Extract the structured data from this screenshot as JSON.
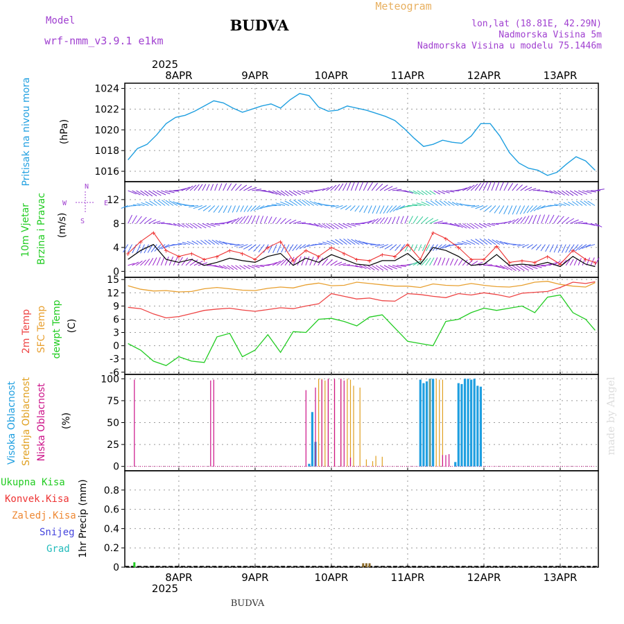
{
  "header": {
    "title": "BUDVA",
    "subtitle": "Meteogram",
    "model_label": "Model",
    "model_name": "wrf-nmm_v3.9.1 e1km",
    "lonlat": "lon,lat (18.81E, 42.29N)",
    "altitude": "Nadmorska Visina 5m",
    "model_altitude": "Nadmorska Visina u modelu 75.1446m",
    "year_top": "2025",
    "year_bottom": "2025",
    "footer_title": "BUDVA",
    "watermark": "made by Angel"
  },
  "colors": {
    "pressure": "#1f9fe0",
    "wind_label": "#22cc22",
    "wind_speed_line": "#000000",
    "gust": "#ee3333",
    "temp2m": "#ee4444",
    "sfc_temp": "#e8a030",
    "dewpt": "#22cc22",
    "high_cloud": "#1f9fe0",
    "mid_cloud": "#e0a020",
    "low_cloud": "#cc1188",
    "total_rain": "#22cc22",
    "conv_rain": "#ee3333",
    "frz_rain": "#ee8833",
    "snow": "#4444dd",
    "hail": "#22bbbb",
    "purple_text": "#a040d0",
    "wind_levels": [
      "#1f9fe0",
      "#4444ee",
      "#8822cc",
      "#22bbbb"
    ]
  },
  "chart_data": {
    "type": "line",
    "x_ticks": [
      "8APR",
      "9APR",
      "10APR",
      "11APR",
      "12APR",
      "13APR"
    ],
    "panels": [
      {
        "id": "pressure",
        "ylabels": [
          "Pritisak na nivou mora",
          "(hPa)"
        ],
        "ylim": [
          1015,
          1024.5
        ],
        "yticks": [
          1016,
          1018,
          1020,
          1022,
          1024
        ],
        "grid": true,
        "series": [
          {
            "x": [
              0,
              3,
              6,
              9,
              12,
              15,
              18,
              21,
              24,
              27,
              30,
              33,
              36,
              39,
              42,
              45,
              48,
              51,
              54,
              57,
              60,
              63,
              66,
              69,
              72,
              75,
              78,
              81,
              84,
              87,
              90,
              93,
              96,
              99,
              102,
              105,
              108,
              111,
              114,
              117,
              120,
              123,
              126,
              129,
              132,
              135,
              138,
              141,
              144,
              147
            ],
            "values": [
              1017.1,
              1018.2,
              1018.6,
              1019.5,
              1020.6,
              1021.2,
              1021.4,
              1021.8,
              1022.3,
              1022.8,
              1022.6,
              1022.1,
              1021.7,
              1022.0,
              1022.3,
              1022.5,
              1022.1,
              1022.9,
              1023.5,
              1023.3,
              1022.2,
              1021.8,
              1021.9,
              1022.3,
              1022.1,
              1021.9,
              1021.6,
              1021.3,
              1020.9,
              1020.1,
              1019.2,
              1018.4,
              1018.6,
              1019.0,
              1018.8,
              1018.7,
              1019.4,
              1020.6,
              1020.6,
              1019.4,
              1017.8,
              1016.8,
              1016.3,
              1016.1,
              1015.6,
              1015.9,
              1016.7,
              1017.4,
              1017.0,
              1016.1
            ]
          }
        ]
      },
      {
        "id": "wind",
        "ylabels": [
          "10m Vjetar",
          "Brzina i Pravac",
          "(m/s)"
        ],
        "ylim": [
          -1,
          15
        ],
        "yticks": [
          0,
          4,
          8,
          12
        ],
        "compass": [
          "N",
          "W",
          "E",
          "S"
        ],
        "grid": true,
        "series": [
          {
            "name": "speed",
            "x": [
              0,
              4,
              8,
              12,
              16,
              20,
              24,
              28,
              32,
              36,
              40,
              44,
              48,
              52,
              56,
              60,
              64,
              68,
              72,
              76,
              80,
              84,
              88,
              92,
              96,
              100,
              104,
              108,
              112,
              116,
              120,
              124,
              128,
              132,
              136,
              140,
              144,
              147
            ],
            "values": [
              2.0,
              3.5,
              4.5,
              2.0,
              1.5,
              2.0,
              1.0,
              1.5,
              2.2,
              1.8,
              1.5,
              2.5,
              3.0,
              1.0,
              2.2,
              1.5,
              2.8,
              2.0,
              1.2,
              1.0,
              1.8,
              1.8,
              3.0,
              1.2,
              4.0,
              3.5,
              2.5,
              1.0,
              1.2,
              2.8,
              1.0,
              1.2,
              1.0,
              1.5,
              0.8,
              2.5,
              1.2,
              0.8
            ]
          },
          {
            "name": "gust",
            "x": [
              0,
              4,
              8,
              12,
              16,
              20,
              24,
              28,
              32,
              36,
              40,
              44,
              48,
              52,
              56,
              60,
              64,
              68,
              72,
              76,
              80,
              84,
              88,
              92,
              96,
              100,
              104,
              108,
              112,
              116,
              120,
              124,
              128,
              132,
              136,
              140,
              144,
              147
            ],
            "values": [
              3.0,
              5.0,
              6.5,
              3.5,
              2.5,
              3.0,
              2.0,
              2.5,
              3.5,
              3.0,
              2.0,
              4.0,
              5.0,
              1.8,
              3.5,
              2.5,
              4.0,
              3.0,
              2.0,
              1.8,
              2.8,
              2.5,
              4.5,
              2.0,
              6.5,
              5.5,
              4.0,
              2.0,
              2.0,
              4.2,
              1.5,
              1.8,
              1.5,
              2.5,
              1.2,
              3.5,
              2.0,
              1.5
            ]
          }
        ]
      },
      {
        "id": "temperature",
        "ylabels": [
          "2m Temp",
          "SFC Temp",
          "dewpt Temp",
          "(C)"
        ],
        "ylim": [
          -6.5,
          15.5
        ],
        "yticks": [
          -6,
          -3,
          0,
          3,
          6,
          9,
          12,
          15
        ],
        "grid": true,
        "series": [
          {
            "name": "2m Temp",
            "x": [
              0,
              4,
              8,
              12,
              16,
              20,
              24,
              28,
              32,
              36,
              40,
              44,
              48,
              52,
              56,
              60,
              64,
              68,
              72,
              76,
              80,
              84,
              88,
              92,
              96,
              100,
              104,
              108,
              112,
              116,
              120,
              124,
              128,
              132,
              136,
              140,
              144,
              147
            ],
            "values": [
              8.7,
              8.4,
              7.2,
              6.3,
              6.6,
              7.3,
              8.0,
              8.3,
              8.5,
              8.1,
              7.8,
              8.2,
              8.6,
              8.4,
              9.0,
              9.5,
              11.8,
              11.2,
              10.6,
              10.8,
              10.2,
              10.1,
              11.8,
              11.6,
              11.2,
              10.9,
              11.8,
              11.5,
              12.0,
              11.6,
              11.0,
              11.9,
              12.1,
              12.3,
              13.2,
              14.4,
              14.1,
              14.5
            ]
          },
          {
            "name": "SFC Temp",
            "x": [
              0,
              4,
              8,
              12,
              16,
              20,
              24,
              28,
              32,
              36,
              40,
              44,
              48,
              52,
              56,
              60,
              64,
              68,
              72,
              76,
              80,
              84,
              88,
              92,
              96,
              100,
              104,
              108,
              112,
              116,
              120,
              124,
              128,
              132,
              136,
              140,
              144,
              147
            ],
            "values": [
              13.6,
              12.8,
              12.4,
              12.5,
              12.2,
              12.3,
              12.9,
              13.2,
              12.9,
              12.6,
              12.5,
              13.0,
              13.3,
              13.1,
              13.8,
              14.2,
              13.6,
              13.7,
              14.4,
              14.1,
              13.8,
              13.5,
              13.5,
              13.2,
              14.0,
              13.7,
              13.6,
              14.1,
              13.7,
              13.4,
              13.3,
              13.7,
              14.4,
              14.6,
              13.9,
              13.5,
              13.3,
              14.3
            ]
          },
          {
            "name": "dewpt Temp",
            "x": [
              0,
              4,
              8,
              12,
              16,
              20,
              24,
              28,
              32,
              36,
              40,
              44,
              48,
              52,
              56,
              60,
              64,
              68,
              72,
              76,
              80,
              84,
              88,
              92,
              96,
              100,
              104,
              108,
              112,
              116,
              120,
              124,
              128,
              132,
              136,
              140,
              144,
              147
            ],
            "values": [
              0.5,
              -1.0,
              -3.5,
              -4.5,
              -2.5,
              -3.5,
              -3.8,
              2.0,
              2.8,
              -2.5,
              -1.0,
              2.5,
              -1.5,
              3.2,
              3.0,
              6.0,
              6.2,
              5.5,
              4.5,
              6.5,
              7.0,
              4.0,
              1.0,
              0.5,
              0.0,
              5.5,
              6.0,
              7.5,
              8.5,
              8.0,
              8.5,
              9.0,
              7.5,
              11.0,
              11.5,
              7.5,
              6.0,
              3.5
            ]
          }
        ]
      },
      {
        "id": "clouds",
        "ylabels": [
          "Visoka Oblacnost",
          "Srednja Oblacnost",
          "Niska Oblacnost",
          "(%)"
        ],
        "ylim": [
          -5,
          105
        ],
        "yticks": [
          0,
          25,
          50,
          75,
          100
        ],
        "grid": true,
        "series": [
          {
            "name": "Visoka Oblacnost",
            "x": [
              57,
              58,
              59,
              92,
              93,
              94,
              95,
              96,
              103,
              104,
              105,
              106,
              107,
              108,
              109,
              110,
              111
            ],
            "values": [
              3,
              62,
              28,
              99,
              95,
              97,
              100,
              100,
              5,
              95,
              94,
              100,
              100,
              99,
              100,
              92,
              91
            ]
          },
          {
            "name": "Srednja Oblacnost",
            "x": [
              60,
              61,
              62,
              63,
              65,
              67,
              69,
              70,
              71,
              73,
              75,
              77,
              78,
              80,
              95,
              97,
              98,
              99
            ],
            "values": [
              100,
              100,
              98,
              100,
              99,
              100,
              100,
              99,
              92,
              90,
              8,
              6,
              12,
              11,
              99,
              100,
              99,
              99
            ]
          },
          {
            "name": "Niska Oblacnost",
            "x": [
              2,
              26,
              27,
              56,
              59,
              61,
              63,
              65,
              67,
              68,
              70,
              99,
              100,
              101
            ],
            "values": [
              99,
              98,
              99,
              87,
              90,
              99,
              100,
              100,
              100,
              98,
              10,
              13,
              13,
              14
            ]
          }
        ]
      },
      {
        "id": "precip",
        "ylabels": [
          "1hr Precip (mm)"
        ],
        "legend": [
          "Ukupna Kisa",
          "Konvek.Kisa",
          "Zaledj.Kisa",
          "Snijeg",
          "Grad"
        ],
        "ylim": [
          0,
          1.0
        ],
        "yticks": [
          0,
          0.2,
          0.4,
          0.6,
          0.8
        ],
        "grid": true,
        "series": [
          {
            "name": "Ukupna Kisa",
            "x": [
              2,
              74,
              75,
              76
            ],
            "values": [
              0.05,
              0.04,
              0.04,
              0.04
            ]
          }
        ]
      }
    ]
  }
}
